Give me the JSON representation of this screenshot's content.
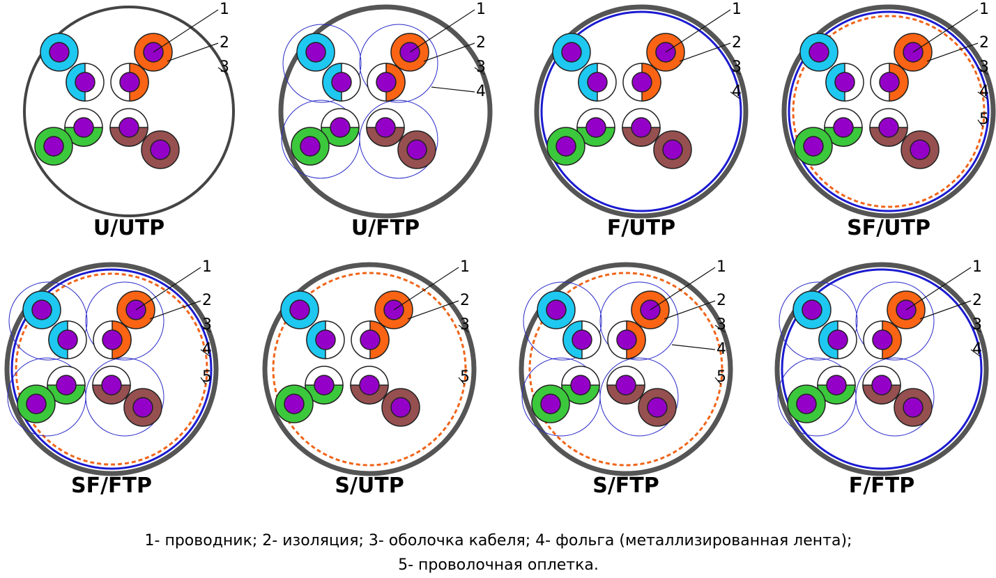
{
  "cables": [
    {
      "name": "U/UTP",
      "callouts": [
        "1",
        "2",
        "3"
      ]
    },
    {
      "name": "U/FTP",
      "callouts": [
        "1",
        "2",
        "3",
        "4"
      ]
    },
    {
      "name": "F/UTP",
      "callouts": [
        "1",
        "2",
        "3",
        "4"
      ]
    },
    {
      "name": "SF/UTP",
      "callouts": [
        "1",
        "2",
        "3",
        "4",
        "5"
      ]
    },
    {
      "name": "SF/FTP",
      "callouts": [
        "1",
        "2",
        "3",
        "4",
        "5"
      ]
    },
    {
      "name": "S/UTP",
      "callouts": [
        "1",
        "2",
        "3",
        "5"
      ]
    },
    {
      "name": "S/FTP",
      "callouts": [
        "1",
        "2",
        "3",
        "4",
        "5"
      ]
    },
    {
      "name": "F/FTP",
      "callouts": [
        "1",
        "2",
        "3",
        "4"
      ]
    }
  ],
  "legend": [
    "1- проводник; 2- изоляция; 3- оболочка кабеля; 4- фольга (металлизированная лента);",
    "5- проволочная оплетка."
  ]
}
